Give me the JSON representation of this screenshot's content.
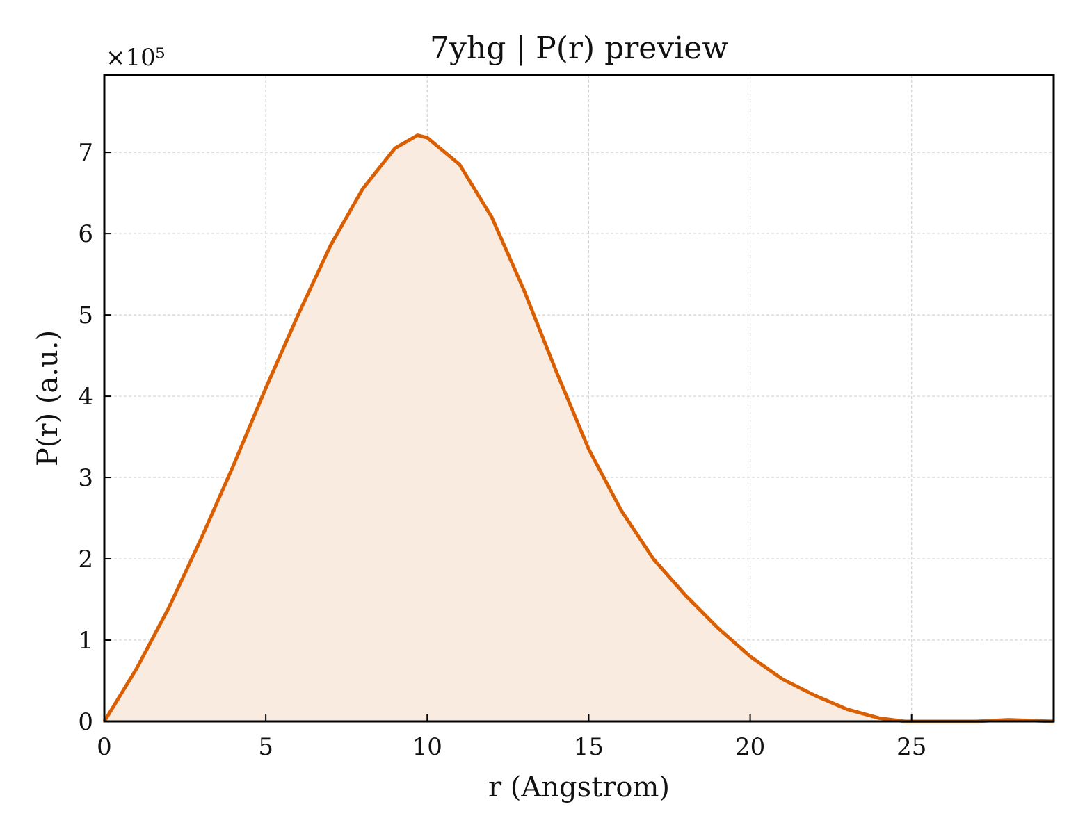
{
  "chart_data": {
    "type": "area",
    "title": "7yhg | P(r) preview",
    "xlabel": "r (Angstrom)",
    "ylabel": "P(r) (a.u.)",
    "y_multiplier": "×10⁵",
    "xlim": [
      0,
      29.4
    ],
    "ylim": [
      0,
      7.95
    ],
    "x_ticks": [
      0,
      5,
      10,
      15,
      20,
      25
    ],
    "x_tick_labels": [
      "0",
      "5",
      "10",
      "15",
      "20",
      "25"
    ],
    "y_ticks": [
      0,
      1,
      2,
      3,
      4,
      5,
      6,
      7
    ],
    "y_tick_labels": [
      "0",
      "1",
      "2",
      "3",
      "4",
      "5",
      "6",
      "7"
    ],
    "grid": true,
    "grid_style": "dashed",
    "tick_direction": "in",
    "line_color": "#d95f02",
    "fill_color": "#f9ebe0",
    "series": [
      {
        "x": [
          0,
          1,
          2,
          3,
          4,
          5,
          6,
          7,
          8,
          9,
          9.7,
          10,
          11,
          12,
          13,
          14,
          15,
          16,
          17,
          18,
          19,
          20,
          21,
          22,
          23,
          24,
          24.8,
          25,
          26,
          27,
          28,
          29.4
        ],
        "values": [
          0,
          0.65,
          1.4,
          2.25,
          3.15,
          4.1,
          5.0,
          5.85,
          6.55,
          7.05,
          7.21,
          7.18,
          6.85,
          6.2,
          5.3,
          4.3,
          3.35,
          2.6,
          2.0,
          1.55,
          1.15,
          0.8,
          0.52,
          0.32,
          0.15,
          0.04,
          0.0,
          0.0,
          0.0,
          0.0,
          0.02,
          0.0
        ]
      }
    ]
  }
}
